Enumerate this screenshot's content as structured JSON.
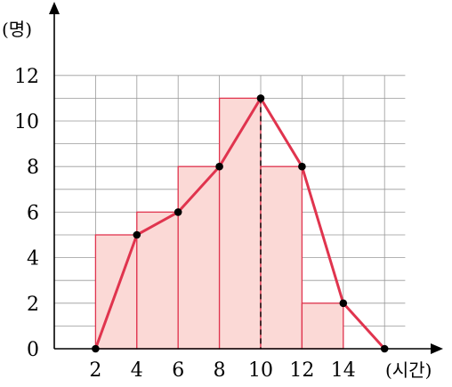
{
  "chart_data": {
    "type": "bar",
    "y_unit": "(명)",
    "x_unit": "(시간)",
    "x_ticks": [
      2,
      4,
      6,
      8,
      10,
      12,
      14
    ],
    "y_ticks": [
      0,
      2,
      4,
      6,
      8,
      10,
      12
    ],
    "xlim": [
      -1,
      16
    ],
    "ylim": [
      0,
      12
    ],
    "histogram": {
      "bins": [
        [
          2,
          4
        ],
        [
          4,
          6
        ],
        [
          6,
          8
        ],
        [
          8,
          10
        ],
        [
          10,
          12
        ],
        [
          12,
          14
        ]
      ],
      "values": [
        5,
        6,
        8,
        11,
        8,
        2
      ]
    },
    "frequency_polygon": {
      "x": [
        1,
        3,
        5,
        7,
        9,
        11,
        13,
        15
      ],
      "y": [
        0,
        5,
        6,
        8,
        11,
        8,
        2,
        0
      ]
    },
    "dashed_line_at_x": 9,
    "grid": true,
    "colors": {
      "bar_fill": "#fbd9d6",
      "bar_stroke": "#e0344e",
      "polygon_line": "#e0344e",
      "points": "#000000",
      "grid": "#999999"
    }
  }
}
